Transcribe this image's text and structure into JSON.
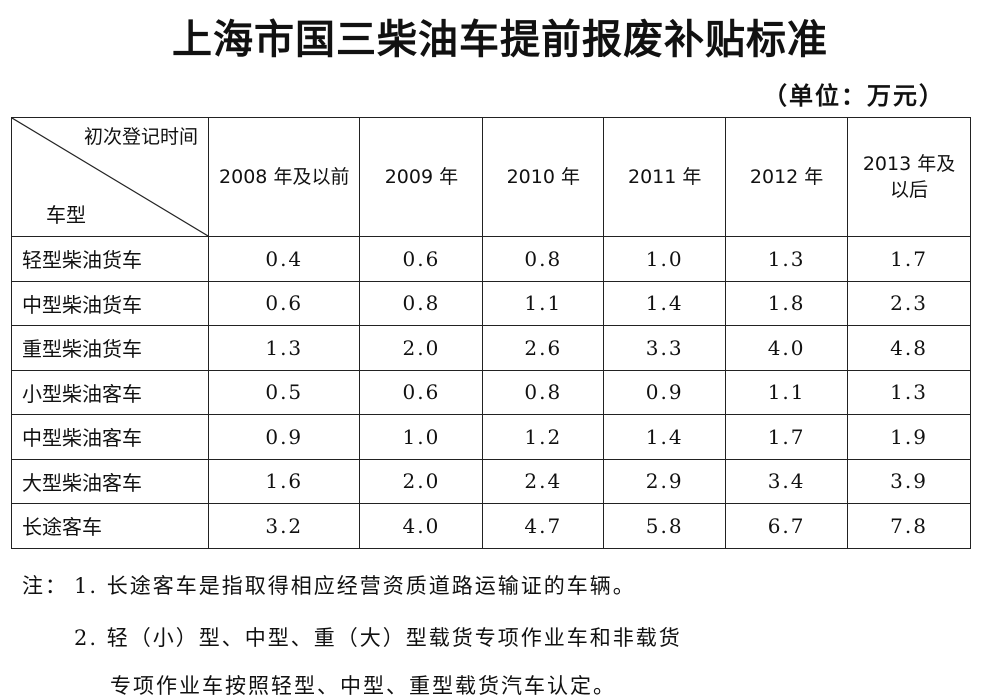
{
  "title": "上海市国三柴油车提前报废补贴标准",
  "unit": "（单位：万元）",
  "table": {
    "corner_top": "初次登记时间",
    "corner_bottom": "车型",
    "columns": [
      "2008 年及以前",
      "2009 年",
      "2010 年",
      "2011 年",
      "2012 年",
      "2013 年及以后"
    ],
    "rows": [
      {
        "label": "轻型柴油货车",
        "values": [
          "0.4",
          "0.6",
          "0.8",
          "1.0",
          "1.3",
          "1.7"
        ]
      },
      {
        "label": "中型柴油货车",
        "values": [
          "0.6",
          "0.8",
          "1.1",
          "1.4",
          "1.8",
          "2.3"
        ]
      },
      {
        "label": "重型柴油货车",
        "values": [
          "1.3",
          "2.0",
          "2.6",
          "3.3",
          "4.0",
          "4.8"
        ]
      },
      {
        "label": "小型柴油客车",
        "values": [
          "0.5",
          "0.6",
          "0.8",
          "0.9",
          "1.1",
          "1.3"
        ]
      },
      {
        "label": "中型柴油客车",
        "values": [
          "0.9",
          "1.0",
          "1.2",
          "1.4",
          "1.7",
          "1.9"
        ]
      },
      {
        "label": "大型柴油客车",
        "values": [
          "1.6",
          "2.0",
          "2.4",
          "2.9",
          "3.4",
          "3.9"
        ]
      },
      {
        "label": "长途客车",
        "values": [
          "3.2",
          "4.0",
          "4.7",
          "5.8",
          "6.7",
          "7.8"
        ]
      }
    ]
  },
  "notes": {
    "prefix": "注：",
    "note1": "1. 长途客车是指取得相应经营资质道路运输证的车辆。",
    "note2_line1": "2. 轻（小）型、中型、重（大）型载货专项作业车和非载货",
    "note2_line2": "专项作业车按照轻型、中型、重型载货汽车认定。"
  }
}
